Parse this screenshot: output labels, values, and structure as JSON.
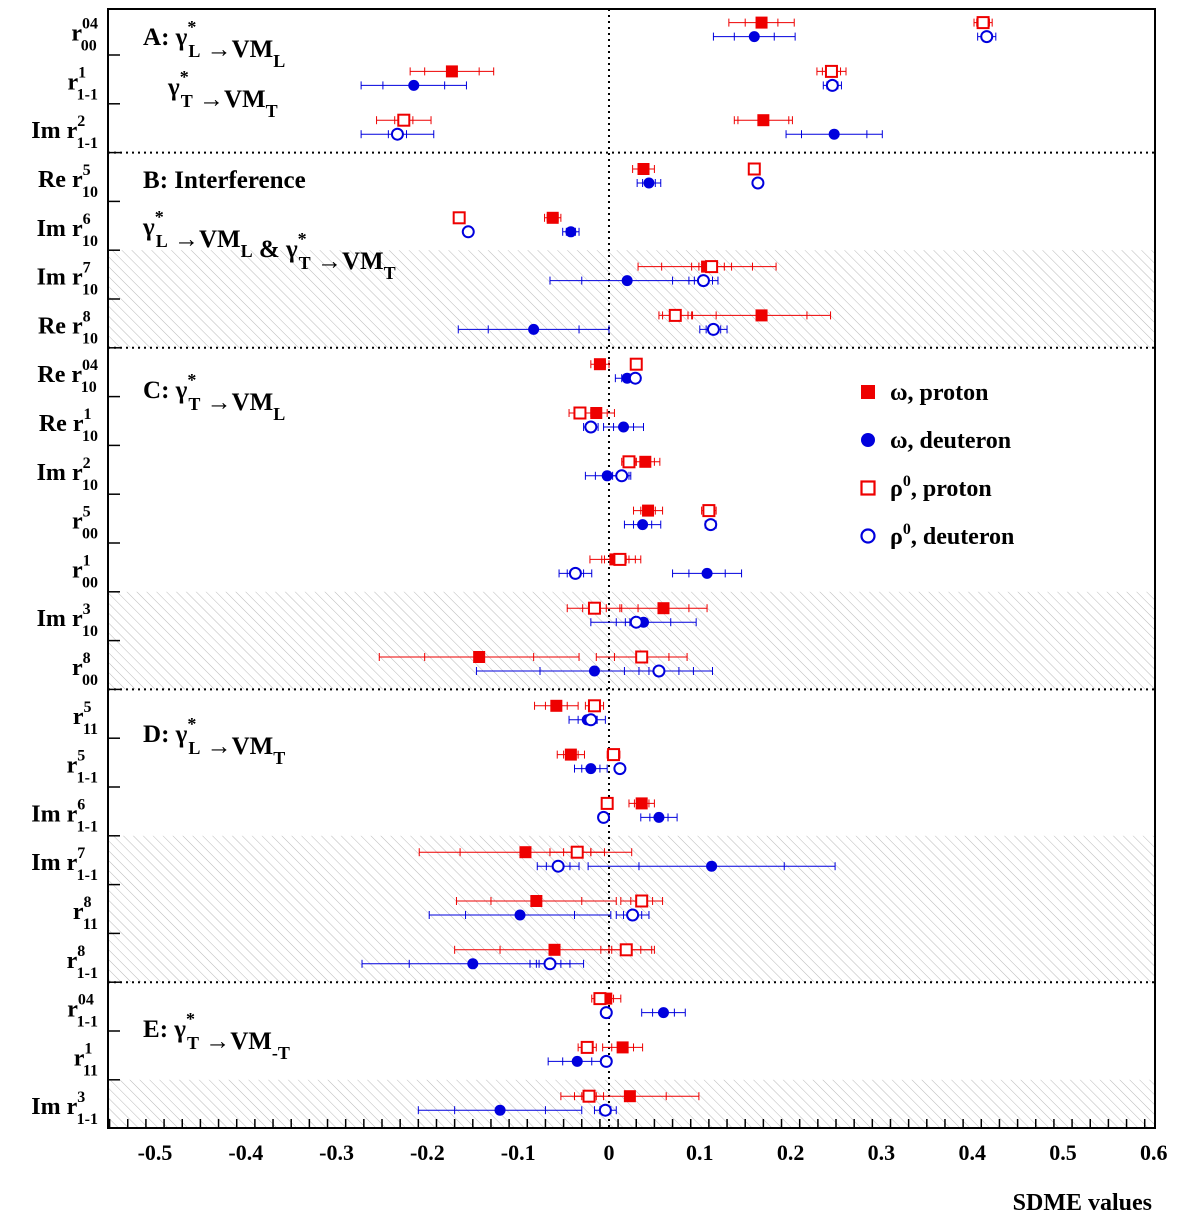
{
  "chart_data": {
    "type": "scatter",
    "xlabel": "SDME values",
    "xlim": [
      -0.55,
      0.6
    ],
    "xticks": [
      "-0.5",
      "-0.4",
      "-0.3",
      "-0.2",
      "-0.1",
      "0",
      "0.1",
      "0.2",
      "0.3",
      "0.4",
      "0.5",
      "0.6"
    ],
    "xtick_values": [
      -0.5,
      -0.4,
      -0.3,
      -0.2,
      -0.1,
      0,
      0.1,
      0.2,
      0.3,
      0.4,
      0.5,
      0.6
    ],
    "legend_position": "right-middle",
    "series": [
      {
        "name": "ω, proton",
        "marker": "filled-square",
        "color": "#ee0000"
      },
      {
        "name": "ω, deuteron",
        "marker": "filled-circle",
        "color": "#0000dd"
      },
      {
        "name": "ρ",
        "name_sup": "0",
        "name_rest": ",  proton",
        "marker": "open-square",
        "color": "#ee0000"
      },
      {
        "name": "ρ",
        "name_sup": "0",
        "name_rest": ",  deuteron",
        "marker": "open-circle",
        "color": "#0000dd"
      }
    ],
    "sections": [
      {
        "id": "A",
        "letter": "A",
        "line1": [
          ": γ",
          "*",
          "L",
          " →VM",
          "L"
        ],
        "line2": [
          "γ",
          "*",
          "T",
          " →VM",
          "T"
        ],
        "shaded": false
      },
      {
        "id": "B",
        "letter": "B",
        "line1": [
          ": Interference"
        ],
        "line2": [
          "γ",
          "*",
          "L",
          " →VM",
          "L",
          " & γ",
          "*",
          "T",
          " →VM",
          "T"
        ],
        "shaded": false
      },
      {
        "id": "C",
        "letter": "C",
        "line1": [
          ": γ",
          "*",
          "T",
          " →VM",
          "L"
        ],
        "shaded": false
      },
      {
        "id": "D",
        "letter": "D",
        "line1": [
          ": γ",
          "*",
          "L",
          " →VM",
          "T"
        ],
        "shaded": false
      },
      {
        "id": "E",
        "letter": "E",
        "line1": [
          ": γ",
          "*",
          "T",
          " →VM",
          "-T"
        ],
        "shaded": false
      }
    ],
    "rows": [
      {
        "pre": "",
        "sym": "r",
        "sup": "04",
        "sub": "00",
        "section": "A",
        "shaded": false,
        "values": {
          "omega_p": [
            0.168,
            0.018,
            0.036
          ],
          "omega_d": [
            0.16,
            0.022,
            0.045
          ],
          "rho_p": [
            0.412,
            0.007,
            0.01
          ],
          "rho_d": [
            0.416,
            0.005,
            0.01
          ]
        }
      },
      {
        "pre": "",
        "sym": "r",
        "sup": "1",
        "sub": "1-1",
        "section": "A",
        "shaded": false,
        "values": {
          "omega_p": [
            -0.173,
            0.03,
            0.046
          ],
          "omega_d": [
            -0.215,
            0.034,
            0.058
          ],
          "rho_p": [
            0.245,
            0.01,
            0.016
          ],
          "rho_d": [
            0.246,
            0.006,
            0.01
          ]
        }
      },
      {
        "pre": "Im ",
        "sym": "r",
        "sup": "2",
        "sub": "1-1",
        "section": "A",
        "shaded": false,
        "values": {
          "omega_p": [
            0.17,
            0.028,
            0.032
          ],
          "omega_d": [
            0.248,
            0.036,
            0.053
          ],
          "rho_p": [
            -0.226,
            0.01,
            0.03
          ],
          "rho_d": [
            -0.233,
            0.01,
            0.04
          ]
        }
      },
      {
        "pre": "Re ",
        "sym": "r",
        "sup": "5",
        "sub": "10",
        "section": "B",
        "shaded": false,
        "values": {
          "omega_p": [
            0.038,
            0.006,
            0.012
          ],
          "omega_d": [
            0.044,
            0.007,
            0.013
          ],
          "rho_p": [
            0.16,
            0.002,
            0.004
          ],
          "rho_d": [
            0.164,
            0.002,
            0.004
          ]
        }
      },
      {
        "pre": "Im ",
        "sym": "r",
        "sup": "6",
        "sub": "10",
        "section": "B",
        "shaded": false,
        "values": {
          "omega_p": [
            -0.062,
            0.006,
            0.009
          ],
          "omega_d": [
            -0.042,
            0.005,
            0.009
          ],
          "rho_p": [
            -0.165,
            0.002,
            0.004
          ],
          "rho_d": [
            -0.155,
            0.002,
            0.003
          ]
        }
      },
      {
        "pre": "Im ",
        "sym": "r",
        "sup": "7",
        "sub": "10",
        "section": "B",
        "shaded": true,
        "values": {
          "omega_p": [
            0.108,
            0.05,
            0.076
          ],
          "omega_d": [
            0.02,
            0.05,
            0.085
          ],
          "rho_p": [
            0.113,
            0.014,
            0.022
          ],
          "rho_d": [
            0.104,
            0.01,
            0.016
          ]
        }
      },
      {
        "pre": "Re ",
        "sym": "r",
        "sup": "8",
        "sub": "10",
        "section": "B",
        "shaded": true,
        "values": {
          "omega_p": [
            0.168,
            0.05,
            0.076
          ],
          "omega_d": [
            -0.083,
            0.05,
            0.083
          ],
          "rho_p": [
            0.073,
            0.014,
            0.018
          ],
          "rho_d": [
            0.115,
            0.008,
            0.015
          ]
        }
      },
      {
        "pre": "Re ",
        "sym": "r",
        "sup": "04",
        "sub": "10",
        "section": "C",
        "shaded": false,
        "values": {
          "omega_p": [
            -0.01,
            0.006,
            0.01
          ],
          "omega_d": [
            0.02,
            0.006,
            0.013
          ],
          "rho_p": [
            0.03,
            0.003,
            0.005
          ],
          "rho_d": [
            0.029,
            0.002,
            0.003
          ]
        }
      },
      {
        "pre": "Re ",
        "sym": "r",
        "sup": "1",
        "sub": "10",
        "section": "C",
        "shaded": false,
        "values": {
          "omega_p": [
            -0.014,
            0.012,
            0.02
          ],
          "omega_d": [
            0.016,
            0.011,
            0.022
          ],
          "rho_p": [
            -0.032,
            0.005,
            0.012
          ],
          "rho_d": [
            -0.02,
            0.005,
            0.008
          ]
        }
      },
      {
        "pre": "Im ",
        "sym": "r",
        "sup": "2",
        "sub": "10",
        "section": "C",
        "shaded": false,
        "values": {
          "omega_p": [
            0.04,
            0.01,
            0.016
          ],
          "omega_d": [
            -0.002,
            0.013,
            0.024
          ],
          "rho_p": [
            0.022,
            0.005,
            0.008
          ],
          "rho_d": [
            0.014,
            0.005,
            0.01
          ]
        }
      },
      {
        "pre": "",
        "sym": "r",
        "sup": "5",
        "sub": "00",
        "section": "C",
        "shaded": false,
        "values": {
          "omega_p": [
            0.043,
            0.008,
            0.016
          ],
          "omega_d": [
            0.037,
            0.01,
            0.02
          ],
          "rho_p": [
            0.11,
            0.003,
            0.008
          ],
          "rho_d": [
            0.112,
            0.002,
            0.006
          ]
        }
      },
      {
        "pre": "",
        "sym": "r",
        "sup": "1",
        "sub": "00",
        "section": "C",
        "shaded": false,
        "values": {
          "omega_p": [
            0.007,
            0.015,
            0.028
          ],
          "omega_d": [
            0.108,
            0.02,
            0.038
          ],
          "rho_p": [
            0.012,
            0.007,
            0.017
          ],
          "rho_d": [
            -0.037,
            0.009,
            0.018
          ]
        }
      },
      {
        "pre": "Im ",
        "sym": "r",
        "sup": "3",
        "sub": "10",
        "section": "C",
        "shaded": true,
        "values": {
          "omega_p": [
            0.06,
            0.028,
            0.048
          ],
          "omega_d": [
            0.038,
            0.03,
            0.058
          ],
          "rho_p": [
            -0.016,
            0.013,
            0.03
          ],
          "rho_d": [
            0.03,
            0.007,
            0.012
          ]
        }
      },
      {
        "pre": "",
        "sym": "r",
        "sup": "8",
        "sub": "00",
        "section": "C",
        "shaded": true,
        "values": {
          "omega_p": [
            -0.143,
            0.06,
            0.11
          ],
          "omega_d": [
            -0.016,
            0.06,
            0.13
          ],
          "rho_p": [
            0.036,
            0.03,
            0.05
          ],
          "rho_d": [
            0.055,
            0.022,
            0.038
          ]
        }
      },
      {
        "pre": "",
        "sym": "r",
        "sup": "5",
        "sub": "11",
        "section": "D",
        "shaded": false,
        "values": {
          "omega_p": [
            -0.058,
            0.012,
            0.024
          ],
          "omega_d": [
            -0.024,
            0.01,
            0.02
          ],
          "rho_p": [
            -0.016,
            0.004,
            0.01
          ],
          "rho_d": [
            -0.02,
            0.004,
            0.007
          ]
        }
      },
      {
        "pre": "",
        "sym": "r",
        "sup": "5",
        "sub": "1-1",
        "section": "D",
        "shaded": false,
        "values": {
          "omega_p": [
            -0.042,
            0.008,
            0.015
          ],
          "omega_d": [
            -0.02,
            0.01,
            0.018
          ],
          "rho_p": [
            0.005,
            0.003,
            0.007
          ],
          "rho_d": [
            0.012,
            0.002,
            0.004
          ]
        }
      },
      {
        "pre": "Im ",
        "sym": "r",
        "sup": "6",
        "sub": "1-1",
        "section": "D",
        "shaded": false,
        "values": {
          "omega_p": [
            0.036,
            0.008,
            0.014
          ],
          "omega_d": [
            0.055,
            0.01,
            0.02
          ],
          "rho_p": [
            -0.002,
            0.002,
            0.004
          ],
          "rho_d": [
            -0.006,
            0.002,
            0.004
          ]
        }
      },
      {
        "pre": "Im ",
        "sym": "r",
        "sup": "7",
        "sub": "1-1",
        "section": "D",
        "shaded": true,
        "values": {
          "omega_p": [
            -0.092,
            0.072,
            0.117
          ],
          "omega_d": [
            0.113,
            0.08,
            0.136
          ],
          "rho_p": [
            -0.035,
            0.015,
            0.03
          ],
          "rho_d": [
            -0.056,
            0.013,
            0.023
          ]
        }
      },
      {
        "pre": "",
        "sym": "r",
        "sup": "8",
        "sub": "11",
        "section": "D",
        "shaded": true,
        "values": {
          "omega_p": [
            -0.08,
            0.05,
            0.088
          ],
          "omega_d": [
            -0.098,
            0.06,
            0.1
          ],
          "rho_p": [
            0.036,
            0.012,
            0.023
          ],
          "rho_d": [
            0.026,
            0.01,
            0.018
          ]
        }
      },
      {
        "pre": "",
        "sym": "r",
        "sup": "8",
        "sub": "1-1",
        "section": "D",
        "shaded": true,
        "values": {
          "omega_p": [
            -0.06,
            0.06,
            0.11
          ],
          "omega_d": [
            -0.15,
            0.07,
            0.122
          ],
          "rho_p": [
            0.019,
            0.016,
            0.028
          ],
          "rho_d": [
            -0.065,
            0.012,
            0.022
          ]
        }
      },
      {
        "pre": "",
        "sym": "r",
        "sup": "04",
        "sub": "1-1",
        "section": "E",
        "shaded": false,
        "values": {
          "omega_p": [
            -0.003,
            0.008,
            0.016
          ],
          "omega_d": [
            0.06,
            0.012,
            0.024
          ],
          "rho_p": [
            -0.01,
            0.003,
            0.006
          ],
          "rho_d": [
            -0.003,
            0.002,
            0.004
          ]
        }
      },
      {
        "pre": "",
        "sym": "r",
        "sup": "1",
        "sub": "11",
        "section": "E",
        "shaded": false,
        "values": {
          "omega_p": [
            0.015,
            0.012,
            0.022
          ],
          "omega_d": [
            -0.035,
            0.016,
            0.032
          ],
          "rho_p": [
            -0.024,
            0.005,
            0.01
          ],
          "rho_d": [
            -0.003,
            0.003,
            0.005
          ]
        }
      },
      {
        "pre": "Im ",
        "sym": "r",
        "sup": "3",
        "sub": "1-1",
        "section": "E",
        "shaded": true,
        "values": {
          "omega_p": [
            0.023,
            0.04,
            0.076
          ],
          "omega_d": [
            -0.12,
            0.05,
            0.09
          ],
          "rho_p": [
            -0.022,
            0.008,
            0.016
          ],
          "rho_d": [
            -0.004,
            0.006,
            0.012
          ]
        }
      }
    ]
  }
}
